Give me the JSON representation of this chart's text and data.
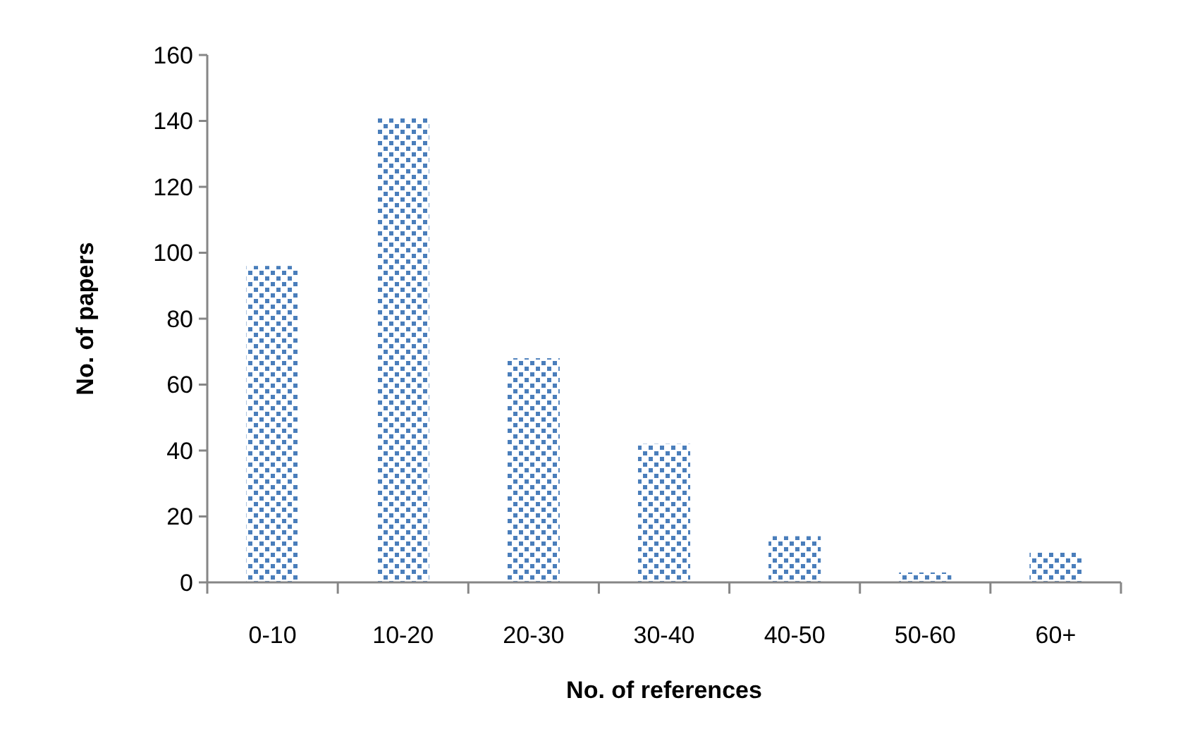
{
  "chart_data": {
    "type": "bar",
    "xlabel": "No. of references",
    "ylabel": "No. of papers",
    "categories": [
      "0-10",
      "10-20",
      "20-30",
      "30-40",
      "40-50",
      "50-60",
      "60+"
    ],
    "values": [
      96,
      141,
      68,
      42,
      14,
      3,
      9
    ],
    "color": "#4a7ebb",
    "ylim": [
      0,
      160
    ],
    "yticks": [
      0,
      20,
      40,
      60,
      80,
      100,
      120,
      140,
      160
    ],
    "grid": false
  }
}
